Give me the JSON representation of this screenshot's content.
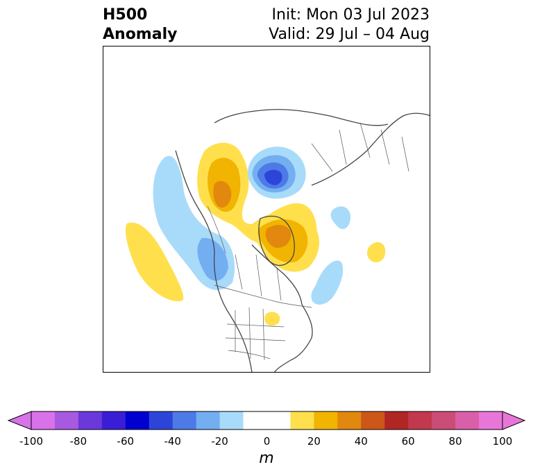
{
  "header": {
    "variable": "H500",
    "subtitle": "Anomaly",
    "init": "Init: Mon 03 Jul 2023",
    "valid": "Valid: 29 Jul – 04 Aug"
  },
  "map": {
    "projection": "north polar stereographic",
    "region": "North America / North Atlantic",
    "anomaly_features": [
      {
        "type": "negative",
        "level": "-40 to -60",
        "location": "Arctic Ocean north of Greenland"
      },
      {
        "type": "positive",
        "level": "30 to 50",
        "location": "Alaska / Yukon"
      },
      {
        "type": "positive",
        "level": "30 to 50",
        "location": "Canadian Arctic Archipelago / Baffin Bay"
      },
      {
        "type": "positive",
        "level": "10 to 20",
        "location": "Northeast Pacific"
      },
      {
        "type": "negative",
        "level": "-10 to -30",
        "location": "Pacific Northwest coast"
      },
      {
        "type": "negative",
        "level": "-10 to -20",
        "location": "Northwest Atlantic off Newfoundland"
      },
      {
        "type": "positive",
        "level": "10 to 20",
        "location": "Ohio Valley"
      },
      {
        "type": "positive",
        "level": "10 to 20",
        "location": "Central North Atlantic"
      }
    ]
  },
  "colorbar": {
    "unit": "m",
    "ticks": [
      "-100",
      "-80",
      "-60",
      "-40",
      "-20",
      "0",
      "20",
      "40",
      "60",
      "80",
      "100"
    ],
    "colors": [
      "#d872e8",
      "#a75adf",
      "#6b38db",
      "#3a1ed6",
      "#0000cf",
      "#2c45d8",
      "#4d7ae6",
      "#73aef1",
      "#a8dbfa",
      "#ffffff",
      "#ffffff",
      "#ffe04c",
      "#f1b400",
      "#e2880e",
      "#cc5719",
      "#b12624",
      "#c2384f",
      "#cb4d77",
      "#da5fa9",
      "#e876d9"
    ],
    "extend_low_color": "#d872e8",
    "extend_high_color": "#e876d9"
  }
}
